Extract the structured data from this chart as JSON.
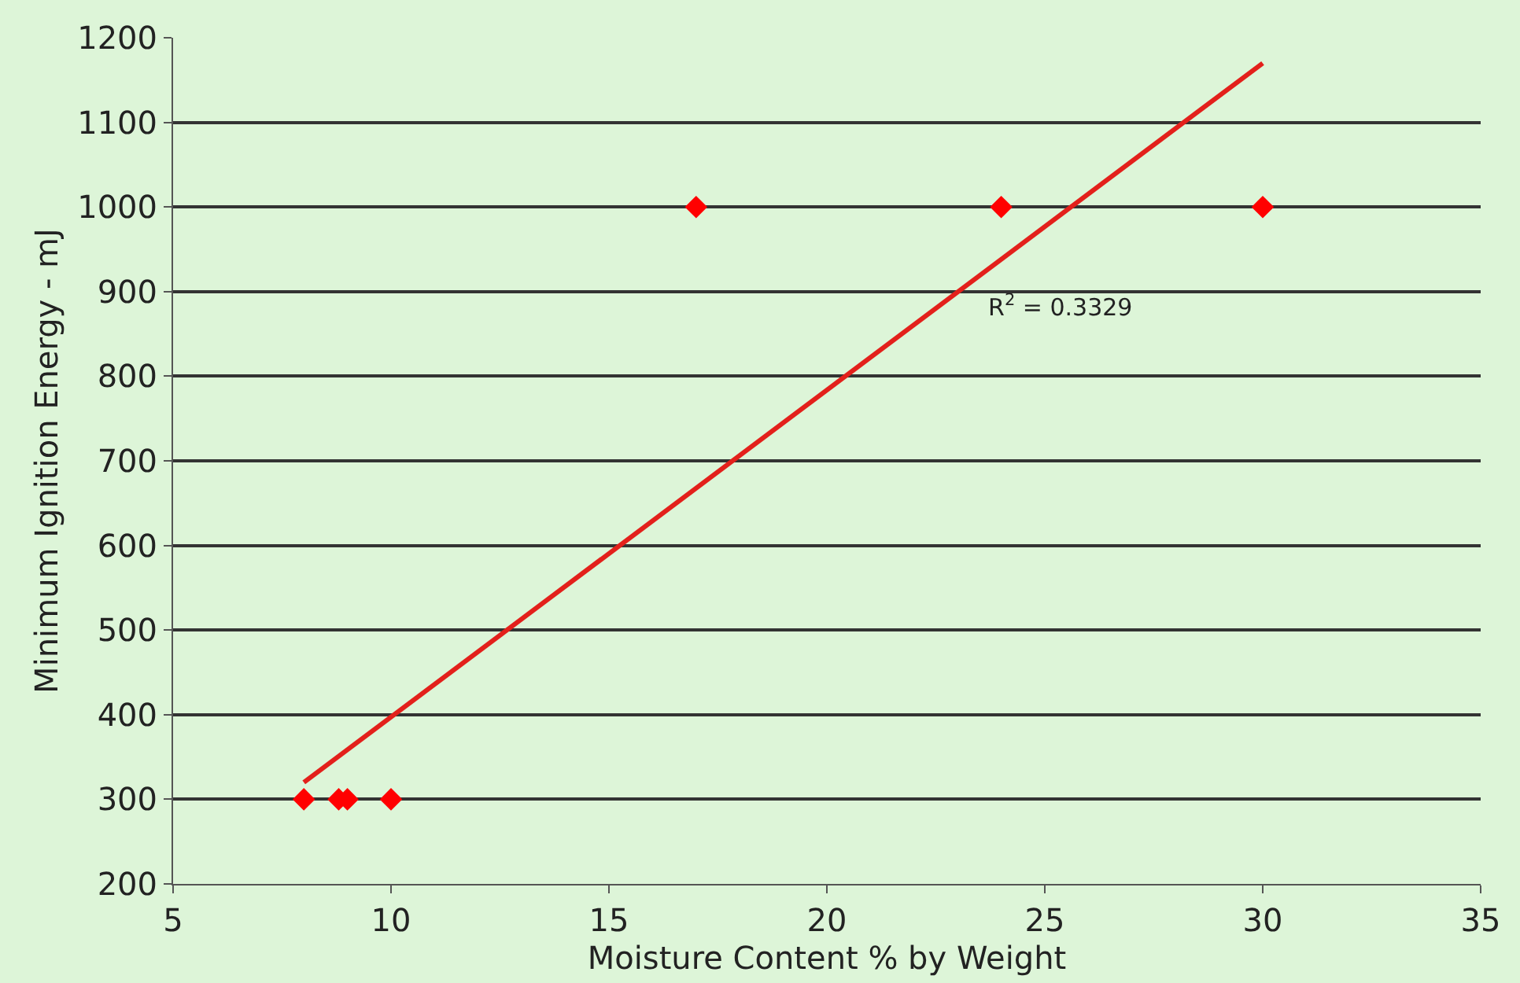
{
  "chart_data": {
    "type": "scatter",
    "xlabel": "Moisture Content % by Weight",
    "ylabel": "Minimum Ignition Energy - mJ",
    "xlim": [
      5,
      35
    ],
    "xticks": [
      5,
      10,
      15,
      20,
      25,
      30,
      35
    ],
    "ylim": [
      200,
      1200
    ],
    "yticks": [
      200,
      300,
      400,
      500,
      600,
      700,
      800,
      900,
      1000,
      1100,
      1200
    ],
    "grid": "y",
    "marker": "diamond",
    "series": [
      {
        "color": "#ff0000",
        "x": [
          8,
          8.8,
          9,
          10,
          17,
          24,
          30
        ],
        "values": [
          300,
          300,
          300,
          300,
          1000,
          1000,
          1000
        ]
      },
      {
        "type": "line",
        "color": "#e3201b",
        "marker": "none",
        "line_style": "solid",
        "x": [
          8,
          30
        ],
        "values": [
          320,
          1170
        ]
      }
    ],
    "annotations": [
      "R$^{2}$ = 0.3329"
    ]
  }
}
